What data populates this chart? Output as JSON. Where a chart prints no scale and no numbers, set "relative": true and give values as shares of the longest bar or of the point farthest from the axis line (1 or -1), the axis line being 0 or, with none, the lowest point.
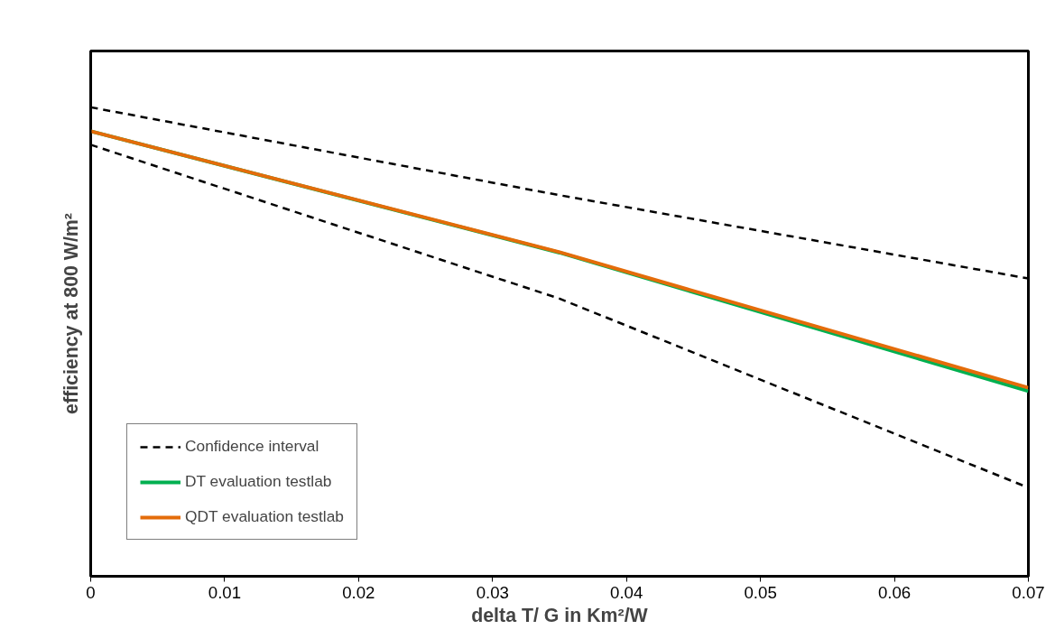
{
  "chart_data": {
    "type": "line",
    "relative": true,
    "xlabel": "delta T/ G in Km²/W",
    "ylabel": "efficiency at 800 W/m²",
    "x": [
      0,
      0.035,
      0.07
    ],
    "xlim": [
      0,
      0.07
    ],
    "xticks": [
      0,
      0.01,
      0.02,
      0.03,
      0.04,
      0.05,
      0.06,
      0.07
    ],
    "grid": false,
    "legend": "bottom left",
    "marker": "none",
    "series": [
      {
        "name": "Confidence interval",
        "color": "#000000",
        "line_style": "dashed",
        "values": [
          1.0,
          0.8125,
          0.635
        ]
      },
      {
        "color": "#000000",
        "line_style": "dashed",
        "values": [
          0.92,
          0.592,
          0.189
        ]
      },
      {
        "name": "DT evaluation testlab",
        "color": "#00b050",
        "line_style": "solid",
        "values": [
          0.949,
          0.69,
          0.395
        ]
      },
      {
        "name": "QDT evaluation testlab",
        "color": "#e46c0a",
        "line_style": "solid",
        "values": [
          0.949,
          0.691,
          0.402
        ]
      }
    ]
  }
}
